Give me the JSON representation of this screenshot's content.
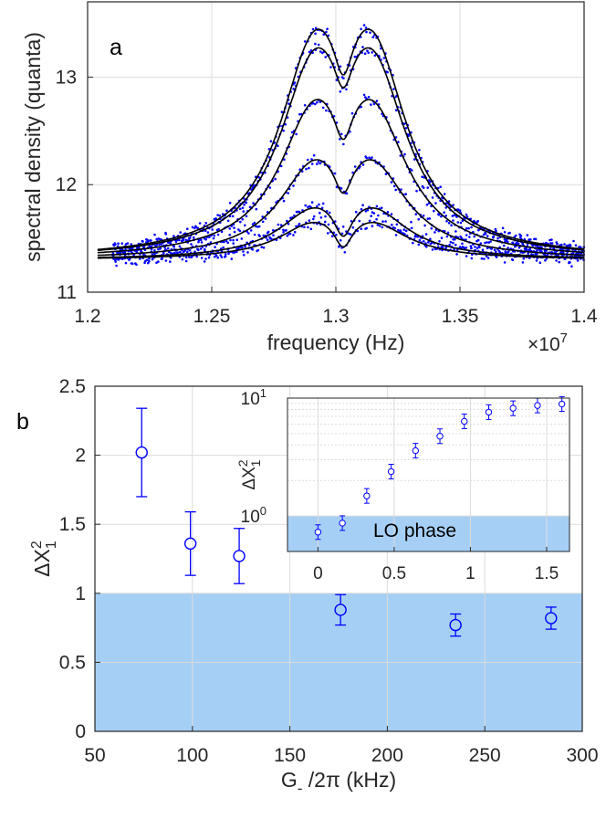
{
  "colors": {
    "data": "#0000ff",
    "fit": "#000000",
    "shade": "#a6cff5",
    "grid": "#dcdcdc",
    "axis": "#262626"
  },
  "chart_data": [
    {
      "id": "a",
      "type": "scatter",
      "panel_label": "a",
      "xlabel": "frequency (Hz)",
      "ylabel": "spectral density (quanta)",
      "x_multiplier_label": "×10",
      "x_multiplier_exp": "7",
      "xlim": [
        1.2,
        1.4
      ],
      "ylim": [
        11,
        13.7
      ],
      "xticks": [
        1.2,
        1.25,
        1.3,
        1.35,
        1.4
      ],
      "xtick_labels": [
        "1.2",
        "1.25",
        "1.3",
        "1.35",
        "1.4"
      ],
      "yticks": [
        11,
        12,
        13
      ],
      "ytick_labels": [
        "11",
        "12",
        "13"
      ],
      "grid": true,
      "data_range": [
        1.21,
        1.4
      ],
      "baseline": 11.3,
      "peaks": [
        1.291,
        1.315
      ],
      "dip_center": 1.303,
      "series": [
        {
          "peak_height": 13.48,
          "dip_value": 13.02
        },
        {
          "peak_height": 13.3,
          "dip_value": 12.9
        },
        {
          "peak_height": 12.83,
          "dip_value": 12.42
        },
        {
          "peak_height": 12.27,
          "dip_value": 11.92
        },
        {
          "peak_height": 11.82,
          "dip_value": 11.52
        },
        {
          "peak_height": 11.68,
          "dip_value": 11.42
        }
      ]
    },
    {
      "id": "b",
      "type": "scatter",
      "panel_label": "b",
      "xlabel": "G",
      "xlabel_sub": "-",
      "xlabel_rest": " /2π (kHz)",
      "ylabel": "ΔX",
      "ylabel_sup": "2",
      "ylabel_sub": "1",
      "xlim": [
        50,
        300
      ],
      "ylim": [
        0,
        2.5
      ],
      "xticks": [
        50,
        100,
        150,
        200,
        250,
        300
      ],
      "xtick_labels": [
        "50",
        "100",
        "150",
        "200",
        "250",
        "300"
      ],
      "yticks": [
        0,
        0.5,
        1,
        1.5,
        2,
        2.5
      ],
      "ytick_labels": [
        "0",
        "0.5",
        "1",
        "1.5",
        "2",
        "2.5"
      ],
      "grid": true,
      "shaded_below": 1,
      "points": [
        {
          "x": 74,
          "y": 2.02,
          "err": 0.32
        },
        {
          "x": 99,
          "y": 1.36,
          "err": 0.23
        },
        {
          "x": 124,
          "y": 1.27,
          "err": 0.2
        },
        {
          "x": 176,
          "y": 0.88,
          "err": 0.11
        },
        {
          "x": 235,
          "y": 0.77,
          "err": 0.08
        },
        {
          "x": 284,
          "y": 0.82,
          "err": 0.08
        }
      ],
      "inset": {
        "type": "scatter",
        "ylabel": "ΔX",
        "ylabel_sup": "2",
        "ylabel_sub": "1",
        "yscale": "log",
        "xlim": [
          -0.2,
          1.65
        ],
        "ylim": [
          0.5,
          10
        ],
        "xticks": [
          0,
          0.5,
          1,
          1.5
        ],
        "xtick_labels": [
          "0",
          "0.5",
          "1",
          "1.5"
        ],
        "yticks": [
          1,
          10
        ],
        "ytick_base": "10",
        "ytick_exps": [
          "0",
          "1"
        ],
        "shaded_below": 1,
        "annotation": "LO phase",
        "points": [
          {
            "x": 0.0,
            "y": 0.73
          },
          {
            "x": 0.16,
            "y": 0.87
          },
          {
            "x": 0.32,
            "y": 1.48
          },
          {
            "x": 0.48,
            "y": 2.38
          },
          {
            "x": 0.64,
            "y": 3.58
          },
          {
            "x": 0.8,
            "y": 4.75
          },
          {
            "x": 0.96,
            "y": 6.35
          },
          {
            "x": 1.12,
            "y": 7.6
          },
          {
            "x": 1.28,
            "y": 8.2
          },
          {
            "x": 1.44,
            "y": 8.65
          },
          {
            "x": 1.6,
            "y": 8.9
          }
        ]
      }
    }
  ]
}
